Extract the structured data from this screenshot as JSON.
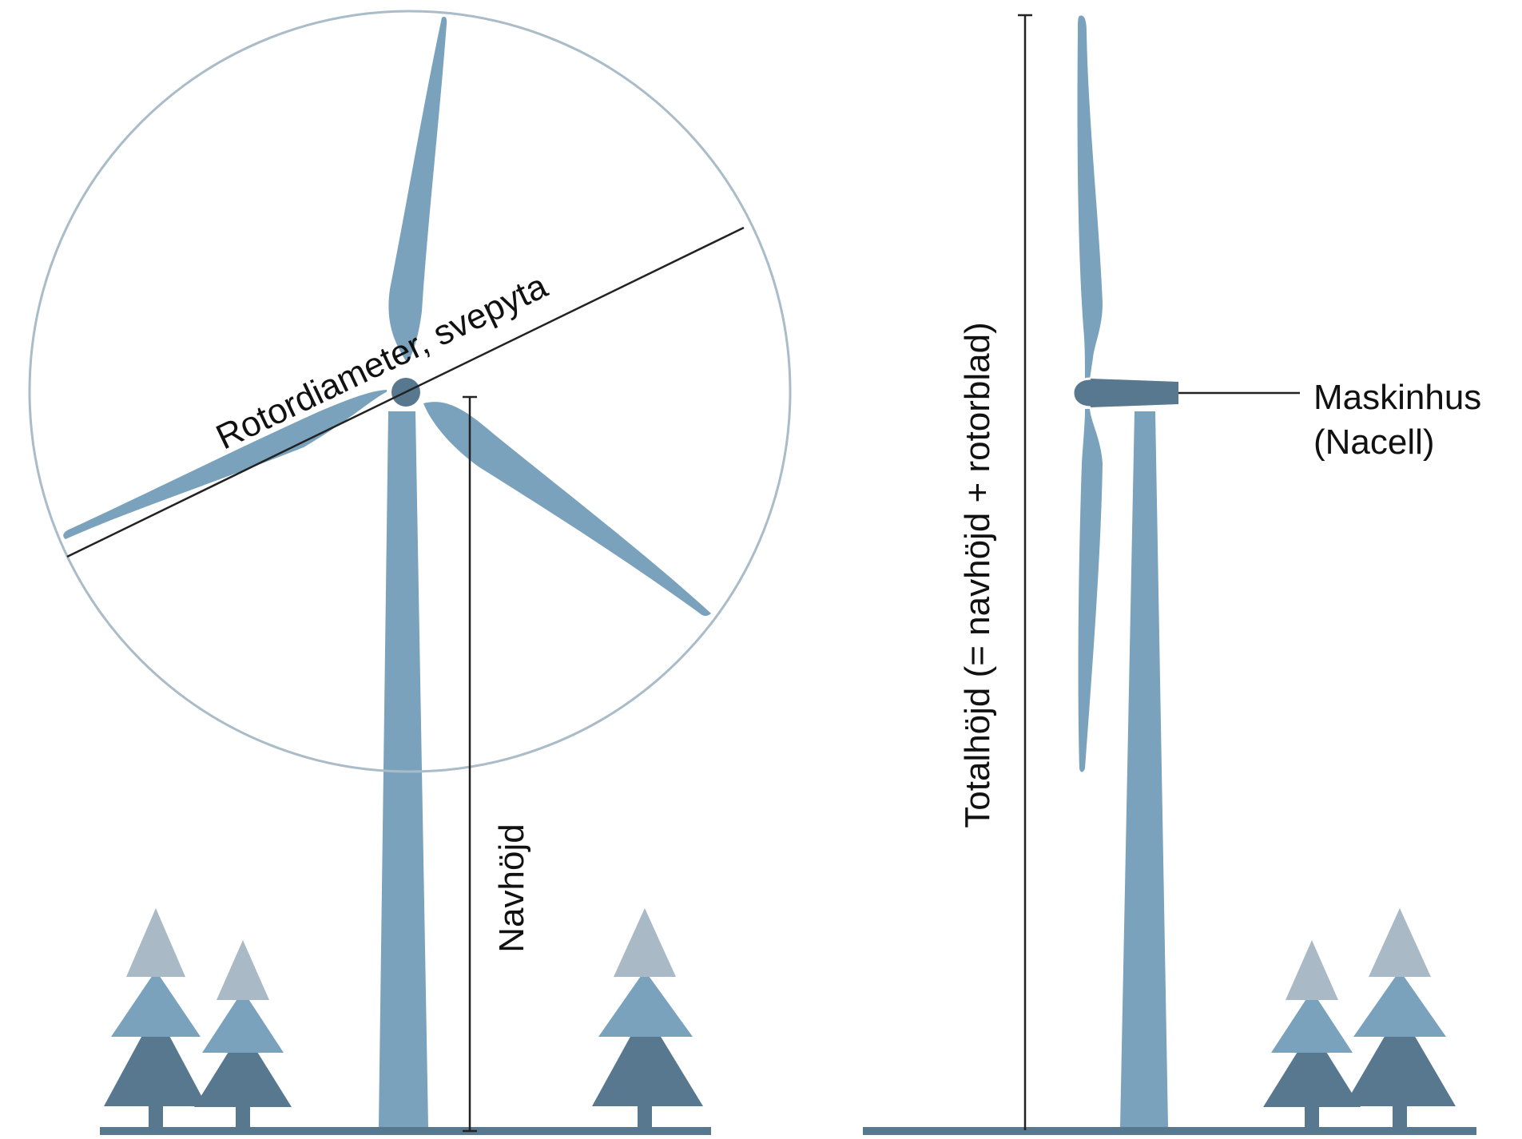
{
  "labels": {
    "rotor_diameter": "Rotordiameter, svepyta",
    "hub_height": "Navhöjd",
    "total_height": "Totalhöjd (= navhöjd + rotorblad)",
    "nacelle_line1": "Maskinhus",
    "nacelle_line2": "(Nacell)"
  },
  "colors": {
    "blade": "#7aa2bd",
    "tower": "#7aa2bd",
    "nacelle": "#58788f",
    "ground": "#58788f",
    "tree_top": "#a9bac6",
    "tree_mid": "#7aa2bd",
    "tree_bottom": "#58788f",
    "rotor_circle": "#a9bcc8",
    "dimension_line": "#222222"
  }
}
